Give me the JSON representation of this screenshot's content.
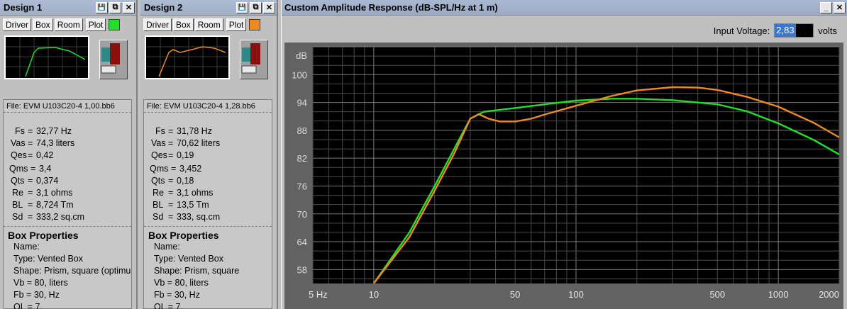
{
  "designs": [
    {
      "title": "Design 1",
      "tabs": [
        "Driver",
        "Box",
        "Room",
        "Plot"
      ],
      "plot_color": "#22e02a",
      "file": "File: EVM U103C20-4 1,00.bb6",
      "params": [
        {
          "label": "Fs",
          "value": "32,77 Hz"
        },
        {
          "label": "Vas",
          "value": "74,3 liters"
        },
        {
          "label": "Qes",
          "value": "0,42"
        },
        {
          "label": "Qms",
          "value": "3,4"
        },
        {
          "label": "Qts",
          "value": "0,374"
        },
        {
          "label": "Re",
          "value": "3,1 ohms"
        },
        {
          "label": "BL",
          "value": "8,724 Tm"
        },
        {
          "label": "Sd",
          "value": "333,2 sq.cm"
        }
      ],
      "box_header": "Box Properties",
      "box_lines": [
        "Name:",
        "Type: Vented Box",
        "Shape: Prism, square (optimum)",
        "Vb = 80, liters",
        "Fb = 30, Hz",
        "QL = 7,"
      ]
    },
    {
      "title": "Design 2",
      "tabs": [
        "Driver",
        "Box",
        "Room",
        "Plot"
      ],
      "plot_color": "#f08a1e",
      "file": "File: EVM U103C20-4 1,28.bb6",
      "params": [
        {
          "label": "Fs",
          "value": "31,78 Hz"
        },
        {
          "label": "Vas",
          "value": "70,62 liters"
        },
        {
          "label": "Qes",
          "value": "0,19"
        },
        {
          "label": "Qms",
          "value": "3,452"
        },
        {
          "label": "Qts",
          "value": "0,18"
        },
        {
          "label": "Re",
          "value": "3,1 ohms"
        },
        {
          "label": "BL",
          "value": "13,5 Tm"
        },
        {
          "label": "Sd",
          "value": "333, sq.cm"
        }
      ],
      "box_header": "Box Properties",
      "box_lines": [
        "Name:",
        "Type: Vented Box",
        "Shape: Prism, square",
        "Vb = 80, liters",
        "Fb = 30, Hz",
        "QL = 7,"
      ]
    }
  ],
  "window_buttons": {
    "save": "💾",
    "copy": "⧉",
    "close": "✕",
    "minimize": "_"
  },
  "chart_window": {
    "title": "Custom Amplitude Response (dB-SPL/Hz at 1 m)",
    "input_voltage_label": "Input Voltage:",
    "input_voltage_value": "2,83",
    "input_voltage_unit": "volts"
  },
  "chart_data": {
    "type": "line",
    "title": "",
    "ylabel": "dB",
    "xlabel": "",
    "xscale": "log",
    "xlim": [
      5,
      2000
    ],
    "ylim": [
      55,
      106
    ],
    "ytick_labels": [
      "58",
      "64",
      "70",
      "76",
      "82",
      "88",
      "94",
      "100"
    ],
    "xtick_labels": [
      {
        "x": 5,
        "label": "5 Hz"
      },
      {
        "x": 10,
        "label": "10"
      },
      {
        "x": 50,
        "label": "50"
      },
      {
        "x": 100,
        "label": "100"
      },
      {
        "x": 500,
        "label": "500"
      },
      {
        "x": 1000,
        "label": "1000"
      },
      {
        "x": 2000,
        "label": "2000"
      }
    ],
    "grid": true,
    "background": "#000000",
    "series": [
      {
        "color": "#22e02a",
        "x": [
          10,
          15,
          20,
          25,
          30,
          35,
          40,
          50,
          70,
          100,
          150,
          200,
          300,
          500,
          700,
          1000,
          1500,
          2000
        ],
        "y": [
          55,
          66,
          76,
          84,
          90.5,
          92,
          92.3,
          92.8,
          93.6,
          94.4,
          94.8,
          94.8,
          94.5,
          93.6,
          92.1,
          89.5,
          85.9,
          82.8
        ]
      },
      {
        "color": "#f08a1e",
        "x": [
          10,
          15,
          20,
          25,
          30,
          33,
          37,
          42,
          50,
          60,
          70,
          100,
          150,
          200,
          300,
          400,
          500,
          700,
          1000,
          1500,
          2000
        ],
        "y": [
          55,
          65,
          75,
          83,
          90.5,
          91.5,
          90.5,
          89.9,
          89.9,
          90.5,
          91.4,
          93.3,
          95.4,
          96.6,
          97.3,
          97.2,
          96.7,
          95.2,
          93.1,
          89.6,
          86.5
        ]
      }
    ]
  }
}
